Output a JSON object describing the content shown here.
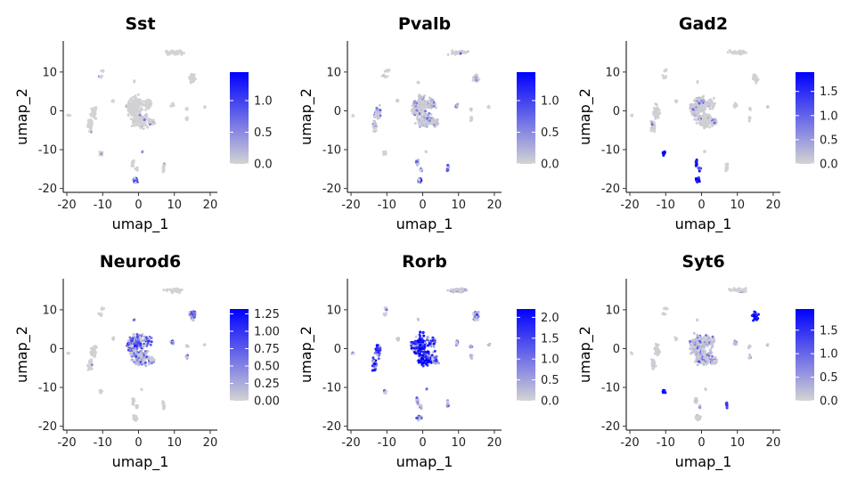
{
  "chart_data": [
    {
      "type": "scatter",
      "title": "Sst",
      "xlabel": "umap_1",
      "ylabel": "umap_2",
      "xlim": [
        -21,
        22
      ],
      "ylim": [
        -21,
        18
      ],
      "xticks": [
        -20,
        -10,
        0,
        10,
        20
      ],
      "yticks": [
        -20,
        -10,
        0,
        10
      ],
      "color_low": "#d3d3d3",
      "color_high": "#0000ff",
      "legend": {
        "placement": "right",
        "max": 1.45,
        "ticks": [
          0.0,
          0.5,
          1.0
        ],
        "tick_labels": [
          "0.0",
          "0.5",
          "1.0"
        ]
      },
      "clusters": [
        {
          "x": 10,
          "y": 15,
          "level": 0.02
        },
        {
          "x": -10,
          "y": 10.3,
          "level": 0.02
        },
        {
          "x": -10.6,
          "y": 8.8,
          "level": 0.02
        },
        {
          "x": -1.2,
          "y": 7.5,
          "level": 0.02
        },
        {
          "x": 15,
          "y": 8.5,
          "level": 0.02
        },
        {
          "x": -0.5,
          "y": 1.2,
          "level": 0.04
        },
        {
          "x": -1.8,
          "y": 0.5,
          "level": 0.04
        },
        {
          "x": 2.5,
          "y": 1.8,
          "level": 0.04
        },
        {
          "x": 0.6,
          "y": -2.5,
          "level": 0.05
        },
        {
          "x": 3.5,
          "y": -3.0,
          "level": 0.05
        },
        {
          "x": -7,
          "y": 2.5,
          "level": 0.02
        },
        {
          "x": -19.5,
          "y": -1.2,
          "level": 0.02
        },
        {
          "x": -12.5,
          "y": -0.5,
          "level": 0.02
        },
        {
          "x": -13.5,
          "y": -4.0,
          "level": 0.02
        },
        {
          "x": 9.5,
          "y": 1.5,
          "level": 0.02
        },
        {
          "x": 13.5,
          "y": 0.5,
          "level": 0.02
        },
        {
          "x": 13.5,
          "y": -2.0,
          "level": 0.02
        },
        {
          "x": 18.5,
          "y": 1.0,
          "level": 0.02
        },
        {
          "x": 1,
          "y": -10.5,
          "level": 0.02
        },
        {
          "x": -10.5,
          "y": -11.0,
          "level": 0.02
        },
        {
          "x": -1.5,
          "y": -13.5,
          "level": 0.03
        },
        {
          "x": -0.5,
          "y": -15.0,
          "level": 0.03
        },
        {
          "x": 7,
          "y": -14.5,
          "level": 0.02
        },
        {
          "x": -1.0,
          "y": -17.8,
          "level": 0.7
        }
      ]
    },
    {
      "type": "scatter",
      "title": "Pvalb",
      "xlabel": "umap_1",
      "ylabel": "umap_2",
      "xlim": [
        -21,
        22
      ],
      "ylim": [
        -21,
        18
      ],
      "xticks": [
        -20,
        -10,
        0,
        10,
        20
      ],
      "yticks": [
        -20,
        -10,
        0,
        10
      ],
      "color_low": "#d3d3d3",
      "color_high": "#0000ff",
      "legend": {
        "placement": "right",
        "max": 1.45,
        "ticks": [
          0.0,
          0.5,
          1.0
        ],
        "tick_labels": [
          "0.0",
          "0.5",
          "1.0"
        ]
      },
      "clusters": [
        {
          "x": 10,
          "y": 15,
          "level": 0.15
        },
        {
          "x": -10,
          "y": 10.3,
          "level": 0.05
        },
        {
          "x": -10.6,
          "y": 8.8,
          "level": 0.05
        },
        {
          "x": -1.2,
          "y": 7.5,
          "level": 0.1
        },
        {
          "x": 15,
          "y": 8.5,
          "level": 0.15
        },
        {
          "x": -0.5,
          "y": 1.2,
          "level": 0.2
        },
        {
          "x": -1.8,
          "y": 0.5,
          "level": 0.2
        },
        {
          "x": 2.5,
          "y": 1.8,
          "level": 0.25
        },
        {
          "x": 0.6,
          "y": -2.5,
          "level": 0.2
        },
        {
          "x": 3.5,
          "y": -3.0,
          "level": 0.2
        },
        {
          "x": -7,
          "y": 2.5,
          "level": 0.1
        },
        {
          "x": -19.5,
          "y": -1.2,
          "level": 0.05
        },
        {
          "x": -12.5,
          "y": -0.5,
          "level": 0.2
        },
        {
          "x": -13.5,
          "y": -4.0,
          "level": 0.2
        },
        {
          "x": 9.5,
          "y": 1.5,
          "level": 0.3
        },
        {
          "x": 13.5,
          "y": 0.5,
          "level": 0.2
        },
        {
          "x": 13.5,
          "y": -2.0,
          "level": 0.1
        },
        {
          "x": 18.5,
          "y": 1.0,
          "level": 0.05
        },
        {
          "x": 1,
          "y": -10.5,
          "level": 0.05
        },
        {
          "x": -10.5,
          "y": -11.0,
          "level": 0.05
        },
        {
          "x": -1.5,
          "y": -13.5,
          "level": 0.45
        },
        {
          "x": -0.5,
          "y": -15.0,
          "level": 0.4
        },
        {
          "x": 7,
          "y": -14.5,
          "level": 0.3
        },
        {
          "x": -1.0,
          "y": -17.8,
          "level": 0.55
        }
      ]
    },
    {
      "type": "scatter",
      "title": "Gad2",
      "xlabel": "umap_1",
      "ylabel": "umap_2",
      "xlim": [
        -21,
        22
      ],
      "ylim": [
        -21,
        18
      ],
      "xticks": [
        -20,
        -10,
        0,
        10,
        20
      ],
      "yticks": [
        -20,
        -10,
        0,
        10
      ],
      "color_low": "#d3d3d3",
      "color_high": "#0000ff",
      "legend": {
        "placement": "right",
        "max": 1.9,
        "ticks": [
          0.0,
          0.5,
          1.0,
          1.5
        ],
        "tick_labels": [
          "0.0",
          "0.5",
          "1.0",
          "1.5"
        ]
      },
      "clusters": [
        {
          "x": 10,
          "y": 15,
          "level": 0.02
        },
        {
          "x": -10,
          "y": 10.3,
          "level": 0.02
        },
        {
          "x": -10.6,
          "y": 8.8,
          "level": 0.02
        },
        {
          "x": -1.2,
          "y": 7.5,
          "level": 0.02
        },
        {
          "x": 15,
          "y": 8.5,
          "level": 0.05
        },
        {
          "x": -0.5,
          "y": 1.2,
          "level": 0.15
        },
        {
          "x": -1.8,
          "y": 0.5,
          "level": 0.2
        },
        {
          "x": 2.5,
          "y": 1.8,
          "level": 0.1
        },
        {
          "x": 0.6,
          "y": -2.5,
          "level": 0.1
        },
        {
          "x": 3.5,
          "y": -3.0,
          "level": 0.1
        },
        {
          "x": -7,
          "y": 2.5,
          "level": 0.05
        },
        {
          "x": -19.5,
          "y": -1.2,
          "level": 0.02
        },
        {
          "x": -12.5,
          "y": -0.5,
          "level": 0.1
        },
        {
          "x": -13.5,
          "y": -4.0,
          "level": 0.1
        },
        {
          "x": 9.5,
          "y": 1.5,
          "level": 0.05
        },
        {
          "x": 13.5,
          "y": 0.5,
          "level": 0.05
        },
        {
          "x": 13.5,
          "y": -2.0,
          "level": 0.05
        },
        {
          "x": 18.5,
          "y": 1.0,
          "level": 0.02
        },
        {
          "x": 1,
          "y": -10.5,
          "level": 0.02
        },
        {
          "x": -10.5,
          "y": -11.0,
          "level": 0.9
        },
        {
          "x": -1.5,
          "y": -13.5,
          "level": 0.85
        },
        {
          "x": -0.5,
          "y": -15.0,
          "level": 0.6
        },
        {
          "x": 7,
          "y": -14.5,
          "level": 0.05
        },
        {
          "x": -1.0,
          "y": -17.8,
          "level": 0.9
        }
      ]
    },
    {
      "type": "scatter",
      "title": "Neurod6",
      "xlabel": "umap_1",
      "ylabel": "umap_2",
      "xlim": [
        -21,
        22
      ],
      "ylim": [
        -21,
        18
      ],
      "xticks": [
        -20,
        -10,
        0,
        10,
        20
      ],
      "yticks": [
        -20,
        -10,
        0,
        10
      ],
      "color_low": "#d3d3d3",
      "color_high": "#0000ff",
      "legend": {
        "placement": "right",
        "max": 1.32,
        "ticks": [
          0.0,
          0.25,
          0.5,
          0.75,
          1.0,
          1.25
        ],
        "tick_labels": [
          "0.00",
          "0.25",
          "0.50",
          "0.75",
          "1.00",
          "1.25"
        ]
      },
      "clusters": [
        {
          "x": 10,
          "y": 15,
          "level": 0.02
        },
        {
          "x": -10,
          "y": 10.3,
          "level": 0.02
        },
        {
          "x": -10.6,
          "y": 8.8,
          "level": 0.02
        },
        {
          "x": -1.2,
          "y": 7.5,
          "level": 0.3
        },
        {
          "x": 15,
          "y": 8.5,
          "level": 0.4
        },
        {
          "x": -0.5,
          "y": 1.2,
          "level": 0.5
        },
        {
          "x": -1.8,
          "y": 0.5,
          "level": 0.55
        },
        {
          "x": 2.5,
          "y": 1.8,
          "level": 0.45
        },
        {
          "x": 0.6,
          "y": -2.5,
          "level": 0.45
        },
        {
          "x": 3.5,
          "y": -3.0,
          "level": 0.4
        },
        {
          "x": -7,
          "y": 2.5,
          "level": 0.05
        },
        {
          "x": -19.5,
          "y": -1.2,
          "level": 0.02
        },
        {
          "x": -12.5,
          "y": -0.5,
          "level": 0.03
        },
        {
          "x": -13.5,
          "y": -4.0,
          "level": 0.03
        },
        {
          "x": 9.5,
          "y": 1.5,
          "level": 0.45
        },
        {
          "x": 13.5,
          "y": 0.5,
          "level": 0.3
        },
        {
          "x": 13.5,
          "y": -2.0,
          "level": 0.6
        },
        {
          "x": 18.5,
          "y": 1.0,
          "level": 0.1
        },
        {
          "x": 1,
          "y": -10.5,
          "level": 0.02
        },
        {
          "x": -10.5,
          "y": -11.0,
          "level": 0.02
        },
        {
          "x": -1.5,
          "y": -13.5,
          "level": 0.1
        },
        {
          "x": -0.5,
          "y": -15.0,
          "level": 0.1
        },
        {
          "x": 7,
          "y": -14.5,
          "level": 0.02
        },
        {
          "x": -1.0,
          "y": -17.8,
          "level": 0.05
        }
      ]
    },
    {
      "type": "scatter",
      "title": "Rorb",
      "xlabel": "umap_1",
      "ylabel": "umap_2",
      "xlim": [
        -21,
        22
      ],
      "ylim": [
        -21,
        18
      ],
      "xticks": [
        -20,
        -10,
        0,
        10,
        20
      ],
      "yticks": [
        -20,
        -10,
        0,
        10
      ],
      "color_low": "#d3d3d3",
      "color_high": "#0000ff",
      "legend": {
        "placement": "right",
        "max": 2.2,
        "ticks": [
          0.0,
          0.5,
          1.0,
          1.5,
          2.0
        ],
        "tick_labels": [
          "0.0",
          "0.5",
          "1.0",
          "1.5",
          "2.0"
        ]
      },
      "clusters": [
        {
          "x": 10,
          "y": 15,
          "level": 0.25
        },
        {
          "x": -10,
          "y": 10.3,
          "level": 0.1
        },
        {
          "x": -10.6,
          "y": 8.8,
          "level": 0.1
        },
        {
          "x": -1.2,
          "y": 7.5,
          "level": 0.2
        },
        {
          "x": 15,
          "y": 8.5,
          "level": 0.4
        },
        {
          "x": -0.5,
          "y": 1.2,
          "level": 0.85
        },
        {
          "x": -1.8,
          "y": 0.5,
          "level": 0.8
        },
        {
          "x": 2.5,
          "y": 1.8,
          "level": 0.6
        },
        {
          "x": 0.6,
          "y": -2.5,
          "level": 0.8
        },
        {
          "x": 3.5,
          "y": -3.0,
          "level": 0.5
        },
        {
          "x": -7,
          "y": 2.5,
          "level": 0.2
        },
        {
          "x": -19.5,
          "y": -1.2,
          "level": 0.6
        },
        {
          "x": -12.5,
          "y": -0.5,
          "level": 0.7
        },
        {
          "x": -13.5,
          "y": -4.0,
          "level": 0.7
        },
        {
          "x": 9.5,
          "y": 1.5,
          "level": 0.4
        },
        {
          "x": 13.5,
          "y": 0.5,
          "level": 0.5
        },
        {
          "x": 13.5,
          "y": -2.0,
          "level": 0.4
        },
        {
          "x": 18.5,
          "y": 1.0,
          "level": 0.3
        },
        {
          "x": 1,
          "y": -10.5,
          "level": 0.1
        },
        {
          "x": -10.5,
          "y": -11.0,
          "level": 0.2
        },
        {
          "x": -1.5,
          "y": -13.5,
          "level": 0.4
        },
        {
          "x": -0.5,
          "y": -15.0,
          "level": 0.35
        },
        {
          "x": 7,
          "y": -14.5,
          "level": 0.3
        },
        {
          "x": -1.0,
          "y": -17.8,
          "level": 0.45
        }
      ]
    },
    {
      "type": "scatter",
      "title": "Syt6",
      "xlabel": "umap_1",
      "ylabel": "umap_2",
      "xlim": [
        -21,
        22
      ],
      "ylim": [
        -21,
        18
      ],
      "xticks": [
        -20,
        -10,
        0,
        10,
        20
      ],
      "yticks": [
        -20,
        -10,
        0,
        10
      ],
      "color_low": "#d3d3d3",
      "color_high": "#0000ff",
      "legend": {
        "placement": "right",
        "max": 1.95,
        "ticks": [
          0.0,
          0.5,
          1.0,
          1.5
        ],
        "tick_labels": [
          "0.0",
          "0.5",
          "1.0",
          "1.5"
        ]
      },
      "clusters": [
        {
          "x": 10,
          "y": 15,
          "level": 0.05
        },
        {
          "x": -10,
          "y": 10.3,
          "level": 0.05
        },
        {
          "x": -10.6,
          "y": 8.8,
          "level": 0.05
        },
        {
          "x": -1.2,
          "y": 7.5,
          "level": 0.1
        },
        {
          "x": 15,
          "y": 8.5,
          "level": 0.9
        },
        {
          "x": -0.5,
          "y": 1.2,
          "level": 0.3
        },
        {
          "x": -1.8,
          "y": 0.5,
          "level": 0.35
        },
        {
          "x": 2.5,
          "y": 1.8,
          "level": 0.25
        },
        {
          "x": 0.6,
          "y": -2.5,
          "level": 0.3
        },
        {
          "x": 3.5,
          "y": -3.0,
          "level": 0.25
        },
        {
          "x": -7,
          "y": 2.5,
          "level": 0.1
        },
        {
          "x": -19.5,
          "y": -1.2,
          "level": 0.05
        },
        {
          "x": -12.5,
          "y": -0.5,
          "level": 0.1
        },
        {
          "x": -13.5,
          "y": -4.0,
          "level": 0.1
        },
        {
          "x": 9.5,
          "y": 1.5,
          "level": 0.2
        },
        {
          "x": 13.5,
          "y": 0.5,
          "level": 0.2
        },
        {
          "x": 13.5,
          "y": -2.0,
          "level": 0.2
        },
        {
          "x": 18.5,
          "y": 1.0,
          "level": 0.05
        },
        {
          "x": 1,
          "y": -10.5,
          "level": 0.05
        },
        {
          "x": -10.5,
          "y": -11.0,
          "level": 0.85
        },
        {
          "x": -1.5,
          "y": -13.5,
          "level": 0.2
        },
        {
          "x": -0.5,
          "y": -15.0,
          "level": 0.2
        },
        {
          "x": 7,
          "y": -14.5,
          "level": 0.6
        },
        {
          "x": -1.0,
          "y": -17.8,
          "level": 0.1
        }
      ]
    }
  ]
}
